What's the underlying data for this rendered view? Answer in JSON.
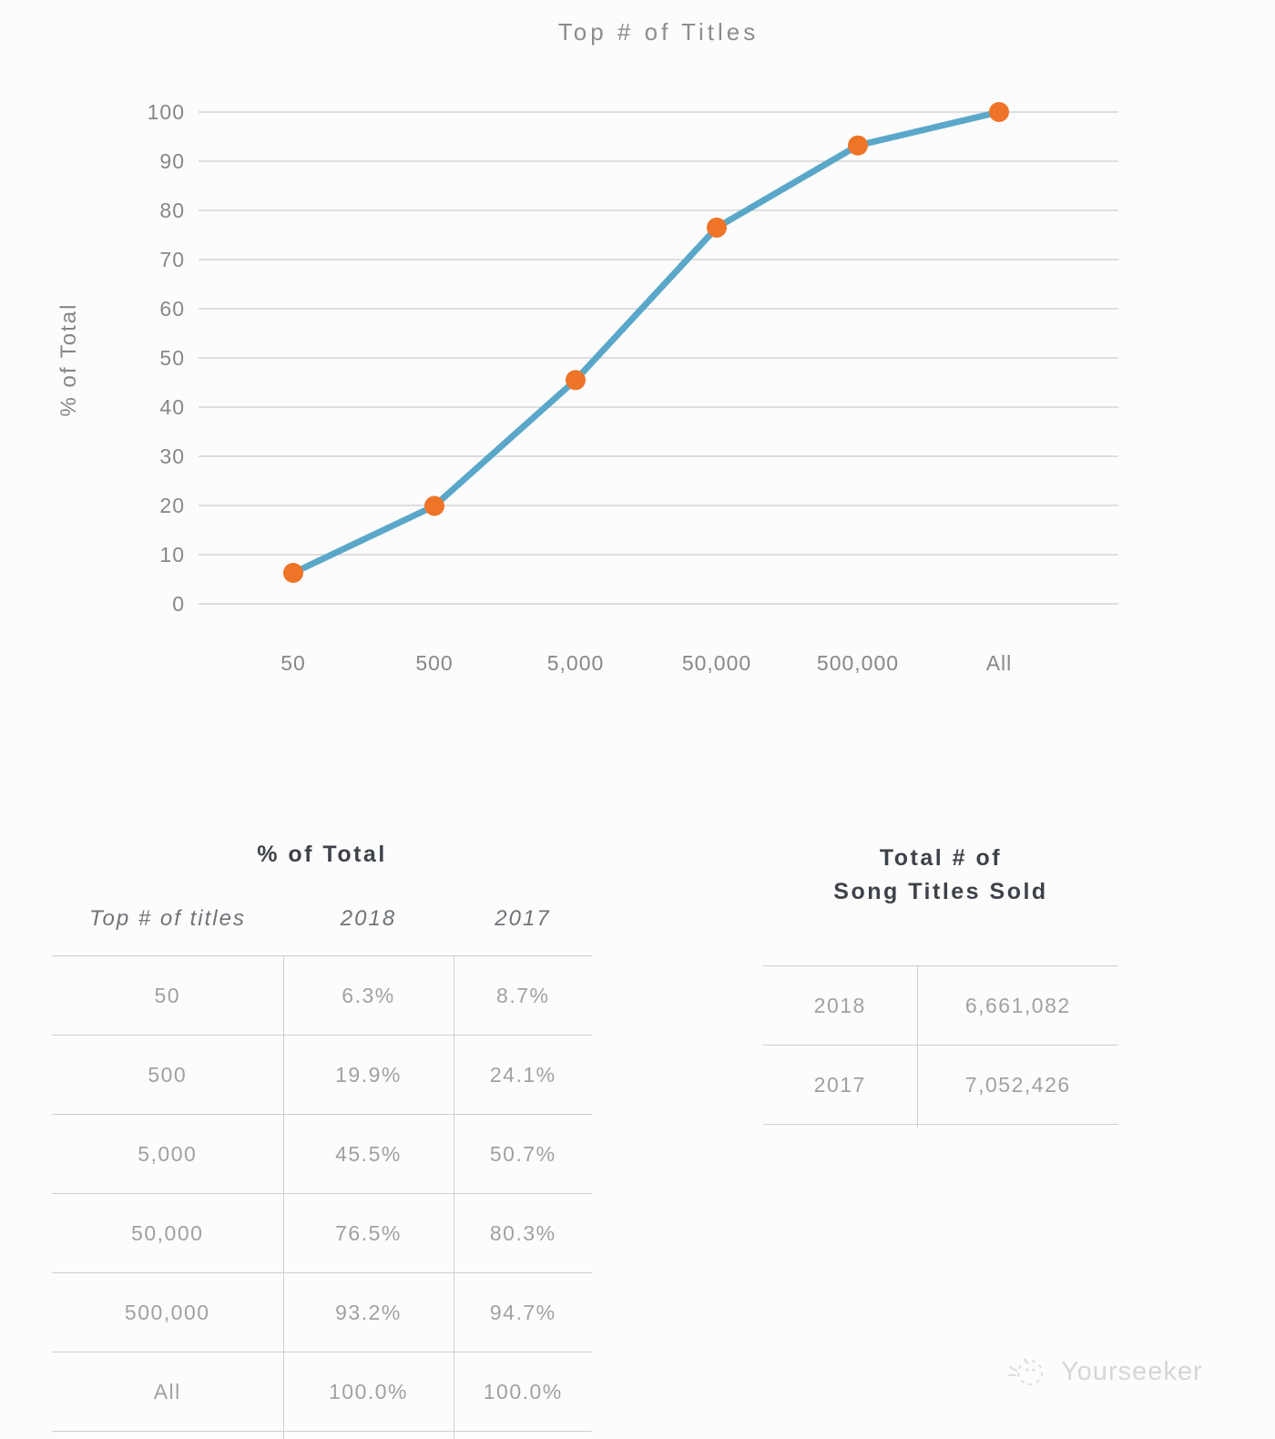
{
  "chart_data": {
    "type": "line",
    "title": "Top # of Titles",
    "ylabel": "% of Total",
    "xlabel": "",
    "categories": [
      "50",
      "500",
      "5,000",
      "50,000",
      "500,000",
      "All"
    ],
    "series": [
      {
        "name": "2018",
        "values": [
          6.3,
          19.9,
          45.5,
          76.5,
          93.2,
          100.0
        ]
      }
    ],
    "ylim": [
      0,
      100
    ],
    "yticks": [
      "100",
      "90",
      "80",
      "70",
      "60",
      "50",
      "40",
      "30",
      "20",
      "10",
      "0"
    ],
    "grid": true,
    "legend": "none",
    "line_color": "#5aa7c9",
    "marker_color": "#ee7428",
    "gridline_color": "#cccccc"
  },
  "tables": {
    "percent_of_total": {
      "title": "% of Total",
      "headers": {
        "label": "Top # of titles",
        "col2018": "2018",
        "col2017": "2017"
      },
      "rows": [
        {
          "label": "50",
          "y2018": "6.3%",
          "y2017": "8.7%"
        },
        {
          "label": "500",
          "y2018": "19.9%",
          "y2017": "24.1%"
        },
        {
          "label": "5,000",
          "y2018": "45.5%",
          "y2017": "50.7%"
        },
        {
          "label": "50,000",
          "y2018": "76.5%",
          "y2017": "80.3%"
        },
        {
          "label": "500,000",
          "y2018": "93.2%",
          "y2017": "94.7%"
        },
        {
          "label": "All",
          "y2018": "100.0%",
          "y2017": "100.0%"
        }
      ]
    },
    "titles_sold": {
      "title_line1": "Total # of",
      "title_line2": "Song Titles Sold",
      "rows": [
        {
          "year": "2018",
          "total": "6,661,082"
        },
        {
          "year": "2017",
          "total": "7,052,426"
        }
      ]
    }
  },
  "watermark": {
    "text": "Yourseeker"
  }
}
